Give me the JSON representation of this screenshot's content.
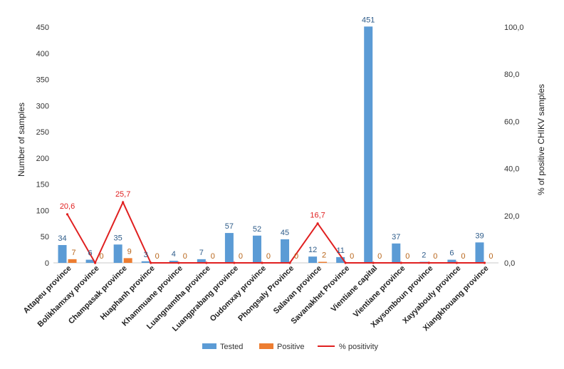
{
  "chart_data": {
    "type": "bar",
    "categories": [
      "Attapeu province",
      "Bolikhamxay province",
      "Champasak province",
      "Huaphanh province",
      "Khammuane province",
      "Luangnamtha province",
      "Luangprabang province",
      "Oudomxay province",
      "Phongsaly Province",
      "Salavan province",
      "Savanakhet Province",
      "Vientiane capital",
      "Vientiane province",
      "Xaysomboun province",
      "Xayyabouly province",
      "Xiangkhouang province"
    ],
    "series": [
      {
        "name": "Tested",
        "color": "#5b9bd5",
        "values": [
          34,
          6,
          35,
          3,
          4,
          7,
          57,
          52,
          45,
          12,
          11,
          451,
          37,
          2,
          6,
          39
        ],
        "labels": [
          "34",
          "6",
          "35",
          "3",
          "4",
          "7",
          "57",
          "52",
          "45",
          "12",
          "11",
          "451",
          "37",
          "2",
          "6",
          "39"
        ]
      },
      {
        "name": "Positive",
        "color": "#ed7d31",
        "values": [
          7,
          0,
          9,
          0,
          0,
          0,
          0,
          0,
          0,
          2,
          0,
          0,
          0,
          0,
          0,
          0
        ],
        "labels": [
          "7",
          "0",
          "9",
          "0",
          "0",
          "0",
          "0",
          "0",
          "0",
          "2",
          "0",
          "0",
          "0",
          "0",
          "0",
          "0"
        ]
      },
      {
        "name": "% positivity",
        "color": "#e02020",
        "axis": "right",
        "values": [
          20.6,
          0,
          25.7,
          0,
          0,
          0,
          0,
          0,
          0,
          16.7,
          0,
          0,
          0,
          0,
          0,
          0
        ],
        "labels": [
          "20,6",
          "25,7",
          "16,7"
        ],
        "label_indices": [
          0,
          2,
          9
        ]
      }
    ],
    "ylabel": "Number of samples",
    "ylim": [
      0,
      450
    ],
    "yticks": [
      "0",
      "50",
      "100",
      "150",
      "200",
      "250",
      "300",
      "350",
      "400",
      "450"
    ],
    "y2label": "% of positive CHIKV samples",
    "y2lim": [
      0,
      100
    ],
    "y2ticks": [
      "0,0",
      "20,0",
      "40,0",
      "60,0",
      "80,0",
      "100,0"
    ],
    "grid": false,
    "legend": "bottom"
  }
}
